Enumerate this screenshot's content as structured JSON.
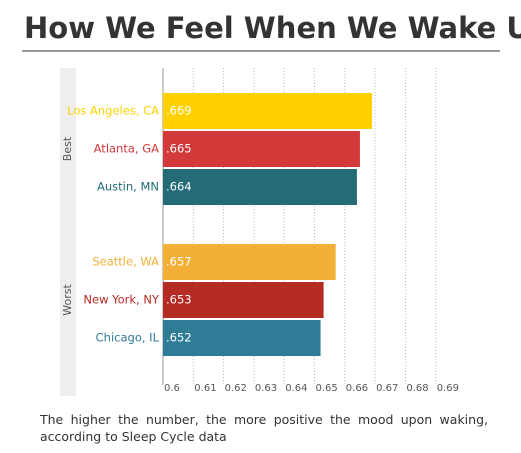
{
  "chart_data": {
    "type": "bar",
    "orientation": "horizontal",
    "title": "How We Feel When We Wake Up",
    "caption": "The higher the number, the more positive the mood upon waking, according to Sleep Cycle data",
    "groups": [
      {
        "name": "Best",
        "categories": [
          "Los Angeles, CA",
          "Atlanta, GA",
          "Austin, MN"
        ],
        "values": [
          0.669,
          0.665,
          0.664
        ],
        "value_labels": [
          ".669",
          ".665",
          ".664"
        ],
        "colors": [
          "#ffd100",
          "#d23a3a",
          "#246b78"
        ]
      },
      {
        "name": "Worst",
        "categories": [
          "Seattle, WA",
          "New York, NY",
          "Chicago, IL"
        ],
        "values": [
          0.657,
          0.653,
          0.652
        ],
        "value_labels": [
          ".657",
          ".653",
          ".652"
        ],
        "colors": [
          "#f2b136",
          "#b52b23",
          "#2f7c97"
        ]
      }
    ],
    "xlim": [
      0.6,
      0.7
    ],
    "xticks": [
      0.6,
      0.61,
      0.62,
      0.63,
      0.64,
      0.65,
      0.66,
      0.67,
      0.68,
      0.69
    ],
    "grid": true
  }
}
